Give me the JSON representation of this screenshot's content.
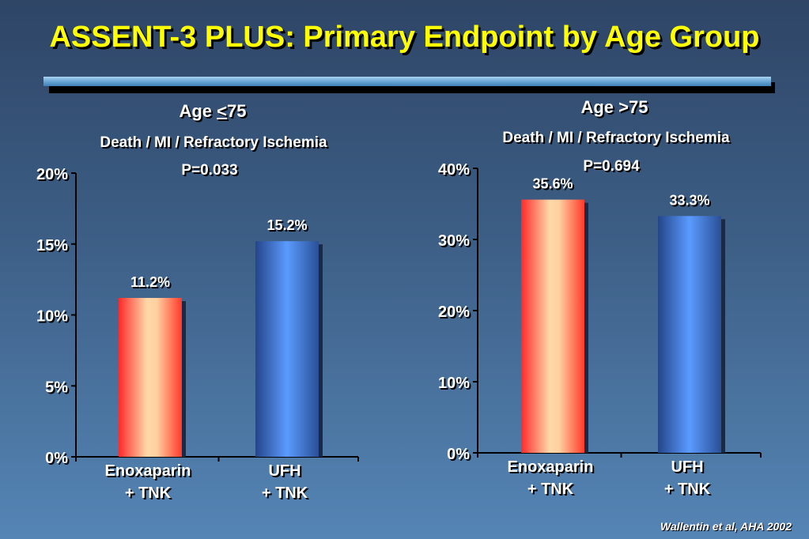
{
  "title": "ASSENT-3 PLUS: Primary Endpoint by Age Group",
  "citation": "Wallentin et al, AHA 2002",
  "panels": [
    {
      "age_prefix": "Age ",
      "age_symbol": "<",
      "age_value": "75",
      "endpoint": "Death / MI / Refractory Ischemia",
      "p_value": "P=0.033"
    },
    {
      "age_prefix": "Age ",
      "age_symbol": ">",
      "age_value": "75",
      "endpoint": "Death / MI / Refractory Ischemia",
      "p_value": "P=0.694"
    }
  ],
  "colors": {
    "title": "#ffff00",
    "enoxaparin_edge": "#ff3030",
    "enoxaparin_center": "#ffd8a8",
    "ufh_edge": "#2b4f9a",
    "ufh_center": "#5a9aff"
  },
  "chart_data": [
    {
      "type": "bar",
      "categories": [
        [
          "Enoxaparin",
          "+ TNK"
        ],
        [
          "UFH",
          "+ TNK"
        ]
      ],
      "values": [
        11.2,
        15.2
      ],
      "value_labels": [
        "11.2%",
        "15.2%"
      ],
      "yticks": [
        0,
        5,
        10,
        15,
        20
      ],
      "ytick_labels": [
        "0%",
        "5%",
        "10%",
        "15%",
        "20%"
      ],
      "ylim": [
        0,
        20
      ],
      "grid": false,
      "bar_styles": [
        "enoxaparin",
        "ufh"
      ]
    },
    {
      "type": "bar",
      "categories": [
        [
          "Enoxaparin",
          "+ TNK"
        ],
        [
          "UFH",
          "+ TNK"
        ]
      ],
      "values": [
        35.6,
        33.3
      ],
      "value_labels": [
        "35.6%",
        "33.3%"
      ],
      "yticks": [
        0,
        10,
        20,
        30,
        40
      ],
      "ytick_labels": [
        "0%",
        "10%",
        "20%",
        "30%",
        "40%"
      ],
      "ylim": [
        0,
        40
      ],
      "grid": false,
      "bar_styles": [
        "enoxaparin",
        "ufh"
      ]
    }
  ]
}
